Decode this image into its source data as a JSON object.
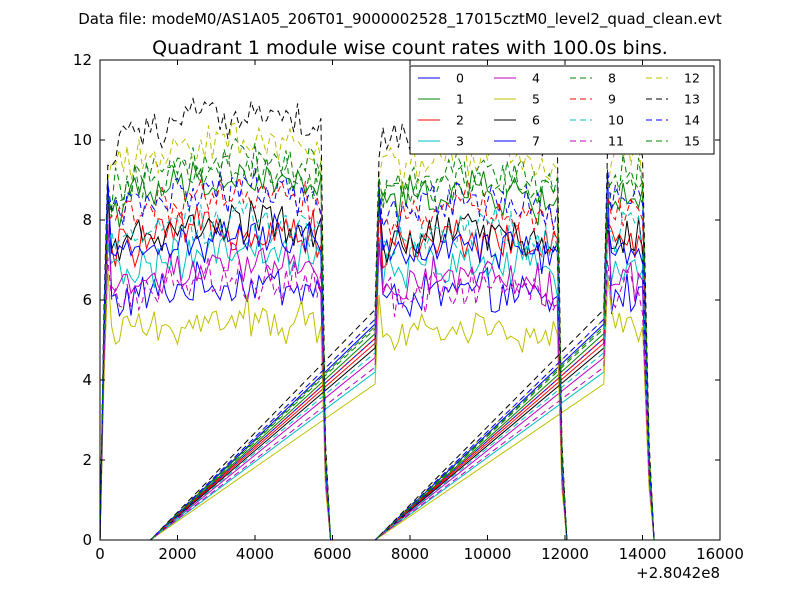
{
  "chart_data": {
    "type": "line",
    "suptitle": "Data file: modeM0/AS1A05_206T01_9000002528_17015cztM0_level2_quad_clean.evt",
    "title": "Quadrant 1 module wise count rates with 100.0s bins.",
    "xlabel": "",
    "ylabel": "",
    "xlim": [
      0,
      16000
    ],
    "ylim": [
      0,
      12
    ],
    "x_offset_label": "+2.8042e8",
    "xticks": [
      0,
      2000,
      4000,
      6000,
      8000,
      10000,
      12000,
      14000,
      16000
    ],
    "xtick_labels": [
      "0",
      "2000",
      "4000",
      "6000",
      "8000",
      "10000",
      "12000",
      "14000",
      "16000"
    ],
    "yticks": [
      0,
      2,
      4,
      6,
      8,
      10,
      12
    ],
    "ytick_labels": [
      "0",
      "2",
      "4",
      "6",
      "8",
      "10",
      "12"
    ],
    "bin_seconds": 100,
    "segments": [
      [
        200,
        5700
      ],
      [
        7200,
        11800
      ],
      [
        13100,
        14050
      ]
    ],
    "gaps_zero": [
      [
        400,
        1300
      ],
      [
        6000,
        7100
      ],
      [
        12000,
        12900
      ]
    ],
    "legend_position": "top-right",
    "legend_columns": 4,
    "series": [
      {
        "name": "0",
        "color": "#0000ff",
        "style": "solid",
        "level": 5.9,
        "start": 9.0
      },
      {
        "name": "1",
        "color": "#008000",
        "style": "solid",
        "level": 8.3,
        "start": 8.6
      },
      {
        "name": "2",
        "color": "#ff0000",
        "style": "solid",
        "level": 7.2,
        "start": 8.2
      },
      {
        "name": "3",
        "color": "#00bfbf",
        "style": "solid",
        "level": 6.6,
        "start": 7.0
      },
      {
        "name": "4",
        "color": "#bf00bf",
        "style": "solid",
        "level": 6.3,
        "start": 7.6
      },
      {
        "name": "5",
        "color": "#bfbf00",
        "style": "solid",
        "level": 5.1,
        "start": 6.5
      },
      {
        "name": "6",
        "color": "#000000",
        "style": "solid",
        "level": 7.3,
        "start": 8.0
      },
      {
        "name": "7",
        "color": "#0000ff",
        "style": "solid",
        "level": 7.0,
        "start": 8.4
      },
      {
        "name": "8",
        "color": "#008000",
        "style": "dashed",
        "level": 8.8,
        "start": 8.8
      },
      {
        "name": "9",
        "color": "#ff0000",
        "style": "dashed",
        "level": 8.0,
        "start": 8.4
      },
      {
        "name": "10",
        "color": "#00bfbf",
        "style": "dashed",
        "level": 7.4,
        "start": 7.8
      },
      {
        "name": "11",
        "color": "#bf00bf",
        "style": "dashed",
        "level": 6.0,
        "start": 7.2
      },
      {
        "name": "12",
        "color": "#bfbf00",
        "style": "dashed",
        "level": 9.2,
        "start": 9.2
      },
      {
        "name": "13",
        "color": "#000000",
        "style": "dashed",
        "level": 9.8,
        "start": 9.6
      },
      {
        "name": "14",
        "color": "#0000ff",
        "style": "dashed",
        "level": 8.1,
        "start": 9.2
      },
      {
        "name": "15",
        "color": "#008000",
        "style": "dashed",
        "level": 8.6,
        "start": 8.9
      }
    ]
  }
}
